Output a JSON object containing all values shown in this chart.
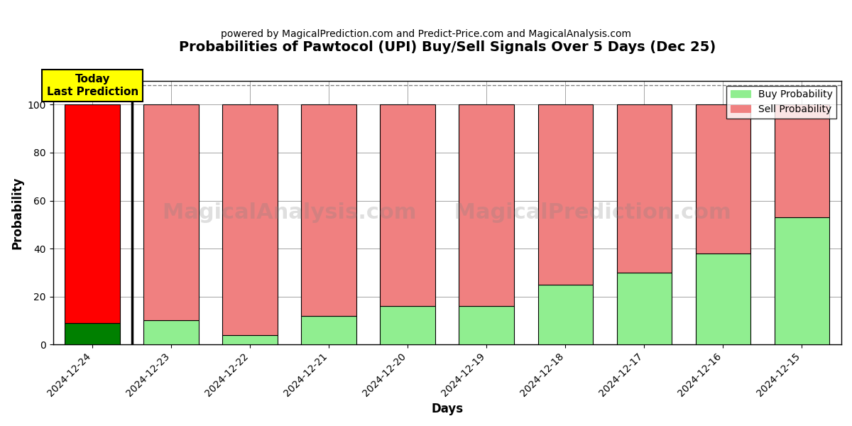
{
  "title": "Probabilities of Pawtocol (UPI) Buy/Sell Signals Over 5 Days (Dec 25)",
  "subtitle": "powered by MagicalPrediction.com and Predict-Price.com and MagicalAnalysis.com",
  "xlabel": "Days",
  "ylabel": "Probability",
  "categories": [
    "2024-12-24",
    "2024-12-23",
    "2024-12-22",
    "2024-12-21",
    "2024-12-20",
    "2024-12-19",
    "2024-12-18",
    "2024-12-17",
    "2024-12-16",
    "2024-12-15"
  ],
  "buy_values": [
    9,
    10,
    4,
    12,
    16,
    16,
    25,
    30,
    38,
    53
  ],
  "sell_values": [
    91,
    90,
    96,
    88,
    84,
    84,
    75,
    70,
    62,
    47
  ],
  "buy_color_today": "#008000",
  "sell_color_today": "#FF0000",
  "buy_color_other": "#90EE90",
  "sell_color_other": "#F08080",
  "bar_edgecolor": "#000000",
  "today_label": "Today\nLast Prediction",
  "legend_buy": "Buy Probability",
  "legend_sell": "Sell Probability",
  "ylim": [
    0,
    110
  ],
  "dashed_line_y": 108,
  "watermark": "MagicalAnalysis.com     MagicalPrediction.com",
  "figsize": [
    12,
    6
  ],
  "dpi": 100
}
